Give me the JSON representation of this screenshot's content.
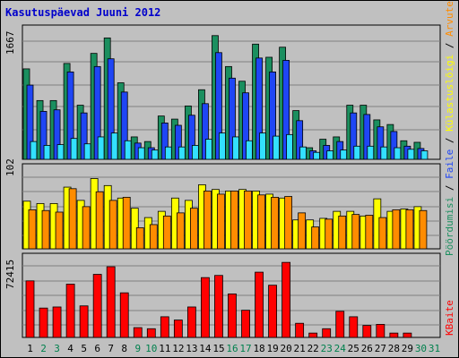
{
  "title": "Kasutuspäevad Juuni 2012",
  "colors": {
    "background": "#c0c0c0",
    "title": "#0000cc",
    "grid": "#808080",
    "weekday_label": "#000000",
    "weekend_label": "#00804d",
    "visits": "#1b8f5f",
    "files": "#1f46f5",
    "hits": "#33e0ff",
    "sites": "#ffff00",
    "kbytes_orange": "#ff8c00",
    "kbytes": "#ff0000"
  },
  "right_legend": {
    "top": [
      {
        "text": "Pöördumisi",
        "color": "#1b8f5f"
      },
      {
        "text": " / ",
        "color": "#000000"
      },
      {
        "text": "Faile",
        "color": "#1f46f5"
      },
      {
        "text": " / ",
        "color": "#000000"
      },
      {
        "text": "Külastuslõigi",
        "color": "#ffff00"
      },
      {
        "text": " / ",
        "color": "#000000"
      },
      {
        "text": "Arvuteid",
        "color": "#ff8c00"
      }
    ],
    "bottom": {
      "text": "KBaite",
      "color": "#ff0000"
    }
  },
  "chart_data": [
    {
      "type": "bar",
      "panel": "top",
      "y_tick_label": "1667",
      "ylim": [
        0,
        1667
      ],
      "grid": true,
      "x": [
        "1",
        "2",
        "3",
        "4",
        "5",
        "6",
        "7",
        "8",
        "9",
        "10",
        "11",
        "12",
        "13",
        "14",
        "15",
        "16",
        "17",
        "18",
        "19",
        "20",
        "21",
        "22",
        "23",
        "24",
        "25",
        "26",
        "27",
        "28",
        "29",
        "30",
        "31"
      ],
      "weekend": [
        2,
        3,
        9,
        10,
        16,
        17,
        23,
        24,
        30,
        31
      ],
      "series": [
        {
          "color": "#1b8f5f",
          "values": [
            1170,
            760,
            760,
            1240,
            700,
            1370,
            1570,
            990,
            290,
            230,
            560,
            520,
            690,
            900,
            1600,
            1200,
            1010,
            1490,
            1320,
            1450,
            630,
            150,
            260,
            290,
            700,
            700,
            510,
            450,
            240,
            220,
            0
          ]
        },
        {
          "color": "#1f46f5",
          "values": [
            960,
            620,
            640,
            1130,
            600,
            1200,
            1300,
            870,
            210,
            150,
            470,
            440,
            570,
            720,
            1380,
            1050,
            860,
            1310,
            1130,
            1280,
            500,
            110,
            180,
            230,
            600,
            580,
            420,
            360,
            170,
            140,
            0
          ]
        },
        {
          "color": "#33e0ff",
          "values": [
            230,
            180,
            190,
            270,
            200,
            290,
            340,
            240,
            150,
            120,
            160,
            160,
            180,
            260,
            340,
            290,
            240,
            340,
            300,
            320,
            160,
            90,
            110,
            120,
            170,
            170,
            160,
            150,
            130,
            110,
            0
          ]
        }
      ]
    },
    {
      "type": "bar",
      "panel": "middle",
      "y_tick_label": "102",
      "ylim": [
        0,
        102
      ],
      "grid": true,
      "x": [
        "1",
        "2",
        "3",
        "4",
        "5",
        "6",
        "7",
        "8",
        "9",
        "10",
        "11",
        "12",
        "13",
        "14",
        "15",
        "16",
        "17",
        "18",
        "19",
        "20",
        "21",
        "22",
        "23",
        "24",
        "25",
        "26",
        "27",
        "28",
        "29",
        "30",
        "31"
      ],
      "series": [
        {
          "color": "#ffff00",
          "values": [
            61,
            58,
            58,
            79,
            62,
            90,
            81,
            65,
            52,
            40,
            48,
            65,
            62,
            82,
            76,
            74,
            76,
            74,
            70,
            65,
            37,
            37,
            39,
            48,
            48,
            42,
            64,
            48,
            51,
            54,
            0
          ]
        },
        {
          "color": "#ff8c00",
          "values": [
            50,
            49,
            47,
            77,
            54,
            73,
            62,
            66,
            27,
            31,
            42,
            46,
            52,
            74,
            70,
            74,
            74,
            69,
            66,
            67,
            46,
            28,
            38,
            42,
            44,
            43,
            40,
            50,
            50,
            49,
            0
          ]
        }
      ]
    },
    {
      "type": "bar",
      "panel": "bottom",
      "y_tick_label": "72415",
      "ylim": [
        0,
        72415
      ],
      "grid": true,
      "x": [
        "1",
        "2",
        "3",
        "4",
        "5",
        "6",
        "7",
        "8",
        "9",
        "10",
        "11",
        "12",
        "13",
        "14",
        "15",
        "16",
        "17",
        "18",
        "19",
        "20",
        "21",
        "22",
        "23",
        "24",
        "25",
        "26",
        "27",
        "28",
        "29",
        "30",
        "31"
      ],
      "series": [
        {
          "color": "#ff0000",
          "values": [
            52000,
            27000,
            28000,
            49000,
            29000,
            58000,
            65000,
            41000,
            9000,
            8000,
            19000,
            16000,
            28000,
            55000,
            57000,
            40000,
            25000,
            60000,
            48000,
            69000,
            13000,
            4000,
            8000,
            24000,
            19000,
            11000,
            12000,
            4000,
            4000,
            0,
            0
          ]
        }
      ]
    }
  ]
}
